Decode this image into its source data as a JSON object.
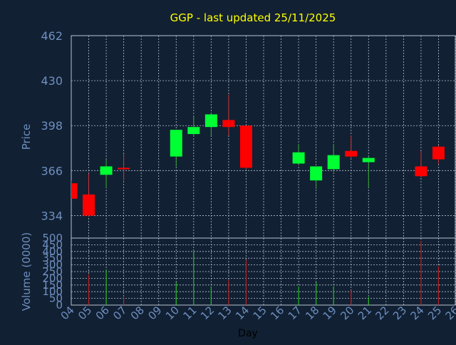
{
  "chart_data": {
    "type": "candlestick",
    "title": "GGP - last updated 25/11/2025",
    "xlabel": "Day",
    "x_ticks": [
      "04",
      "05",
      "06",
      "07",
      "08",
      "09",
      "10",
      "11",
      "12",
      "13",
      "14",
      "15",
      "16",
      "17",
      "18",
      "19",
      "20",
      "21",
      "22",
      "23",
      "24",
      "25",
      "26"
    ],
    "price_panel": {
      "ylabel": "Price",
      "ylim": [
        318,
        462
      ],
      "yticks": [
        "462",
        "430",
        "398",
        "366",
        "334"
      ],
      "candles": [
        {
          "day": "04",
          "open": 357,
          "high": 359,
          "low": 346,
          "close": 346
        },
        {
          "day": "05",
          "open": 349,
          "high": 364,
          "low": 333,
          "close": 334
        },
        {
          "day": "06",
          "open": 363,
          "high": 374,
          "low": 354,
          "close": 369
        },
        {
          "day": "07",
          "open": 368,
          "high": 378,
          "low": 359,
          "close": 367
        },
        {
          "day": "10",
          "open": 376,
          "high": 395,
          "low": 369,
          "close": 395
        },
        {
          "day": "11",
          "open": 392,
          "high": 405,
          "low": 390,
          "close": 397
        },
        {
          "day": "12",
          "open": 397,
          "high": 407,
          "low": 391,
          "close": 406
        },
        {
          "day": "13",
          "open": 402,
          "high": 420,
          "low": 391,
          "close": 397
        },
        {
          "day": "14",
          "open": 398,
          "high": 398,
          "low": 367,
          "close": 368
        },
        {
          "day": "17",
          "open": 371,
          "high": 385,
          "low": 370,
          "close": 379
        },
        {
          "day": "18",
          "open": 359,
          "high": 369,
          "low": 353,
          "close": 369
        },
        {
          "day": "19",
          "open": 367,
          "high": 385,
          "low": 365,
          "close": 377
        },
        {
          "day": "20",
          "open": 380,
          "high": 391,
          "low": 375,
          "close": 376
        },
        {
          "day": "21",
          "open": 372,
          "high": 376,
          "low": 354,
          "close": 375
        },
        {
          "day": "24",
          "open": 369,
          "high": 380,
          "low": 361,
          "close": 362
        },
        {
          "day": "25",
          "open": 383,
          "high": 384,
          "low": 371,
          "close": 374
        }
      ]
    },
    "volume_panel": {
      "ylabel": "Volume (0000)",
      "ylim": [
        0,
        500
      ],
      "yticks": [
        "500",
        "450",
        "400",
        "350",
        "300",
        "250",
        "200",
        "150",
        "100",
        "50",
        "0"
      ],
      "bars": [
        {
          "day": "05",
          "value": 230
        },
        {
          "day": "06",
          "value": 260
        },
        {
          "day": "07",
          "value": 60
        },
        {
          "day": "10",
          "value": 170
        },
        {
          "day": "11",
          "value": 400
        },
        {
          "day": "12",
          "value": 140
        },
        {
          "day": "13",
          "value": 190
        },
        {
          "day": "14",
          "value": 340
        },
        {
          "day": "17",
          "value": 140
        },
        {
          "day": "18",
          "value": 170
        },
        {
          "day": "19",
          "value": 140
        },
        {
          "day": "20",
          "value": 110
        },
        {
          "day": "21",
          "value": 60
        },
        {
          "day": "24",
          "value": 480
        },
        {
          "day": "25",
          "value": 290
        }
      ]
    },
    "grid": true,
    "colors": {
      "background": "#112033",
      "title": "#ffff00",
      "axis_text": "#6f8fbf",
      "grid": "#b8c3d0",
      "up": "#00ff33",
      "down": "#ff0000",
      "volume_up": "#22bb22",
      "volume_down": "#bb2222"
    }
  }
}
